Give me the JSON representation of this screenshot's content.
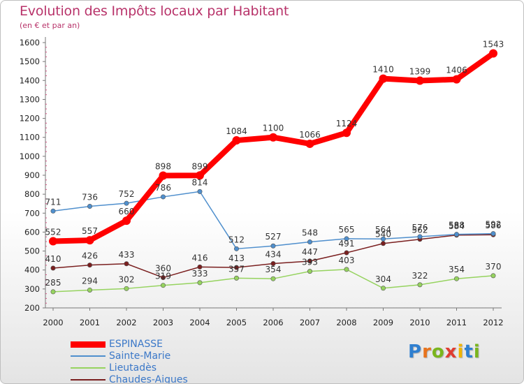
{
  "header": {
    "title": "Evolution des Impôts locaux par Habitant",
    "subtitle": "(en € et par an)"
  },
  "logo": {
    "text": "Proxiti",
    "letter_colors": [
      "#2f7fd0",
      "#e8731c",
      "#7ab51d",
      "#e03c31",
      "#f0b400",
      "#2f7fd0",
      "#7ab51d"
    ]
  },
  "chart_data": {
    "type": "line",
    "x": [
      "2000",
      "2001",
      "2002",
      "2003",
      "2004",
      "2005",
      "2006",
      "2007",
      "2008",
      "2009",
      "2010",
      "2011",
      "2012"
    ],
    "ylim": [
      200,
      1600
    ],
    "yticks": [
      200,
      300,
      400,
      500,
      600,
      700,
      800,
      900,
      1000,
      1100,
      1200,
      1300,
      1400,
      1500,
      1600
    ],
    "grid": false,
    "legend_position": "bottom-left",
    "series": [
      {
        "name": "ESPINASSE",
        "color": "#ff0000",
        "values": [
          552,
          557,
          660,
          898,
          899,
          1084,
          1100,
          1066,
          1124,
          1410,
          1399,
          1406,
          1543
        ],
        "labels": [
          "552",
          "557",
          "660",
          "898",
          "899",
          "1084",
          "1100",
          "1066",
          "1124",
          "1410",
          "1399",
          "1406",
          "1543"
        ]
      },
      {
        "name": "Sainte-Marie",
        "color": "#4f8fcd",
        "values": [
          711,
          736,
          752,
          786,
          814,
          512,
          527,
          548,
          565,
          564,
          576,
          588,
          592
        ],
        "labels": [
          "711",
          "736",
          "752",
          "786",
          "814",
          "512",
          "527",
          "548",
          "565",
          "564",
          "576",
          "588",
          "592"
        ]
      },
      {
        "name": "Lieutadès",
        "color": "#96d35f",
        "values": [
          285,
          294,
          302,
          319,
          333,
          357,
          354,
          393,
          403,
          304,
          322,
          354,
          370
        ],
        "labels": [
          "285",
          "294",
          "302",
          "319",
          "333",
          "357",
          "354",
          "393",
          "403",
          "304",
          "322",
          "354",
          "370"
        ]
      },
      {
        "name": "Chaudes-Aigues",
        "color": "#7a1f1f",
        "values": [
          410,
          426,
          433,
          360,
          416,
          413,
          434,
          447,
          491,
          540,
          562,
          584,
          586
        ],
        "labels": [
          "410",
          "426",
          "433",
          "360",
          "416",
          "413",
          "434",
          "447",
          "491",
          "540",
          "562",
          "584",
          "586"
        ]
      }
    ]
  }
}
